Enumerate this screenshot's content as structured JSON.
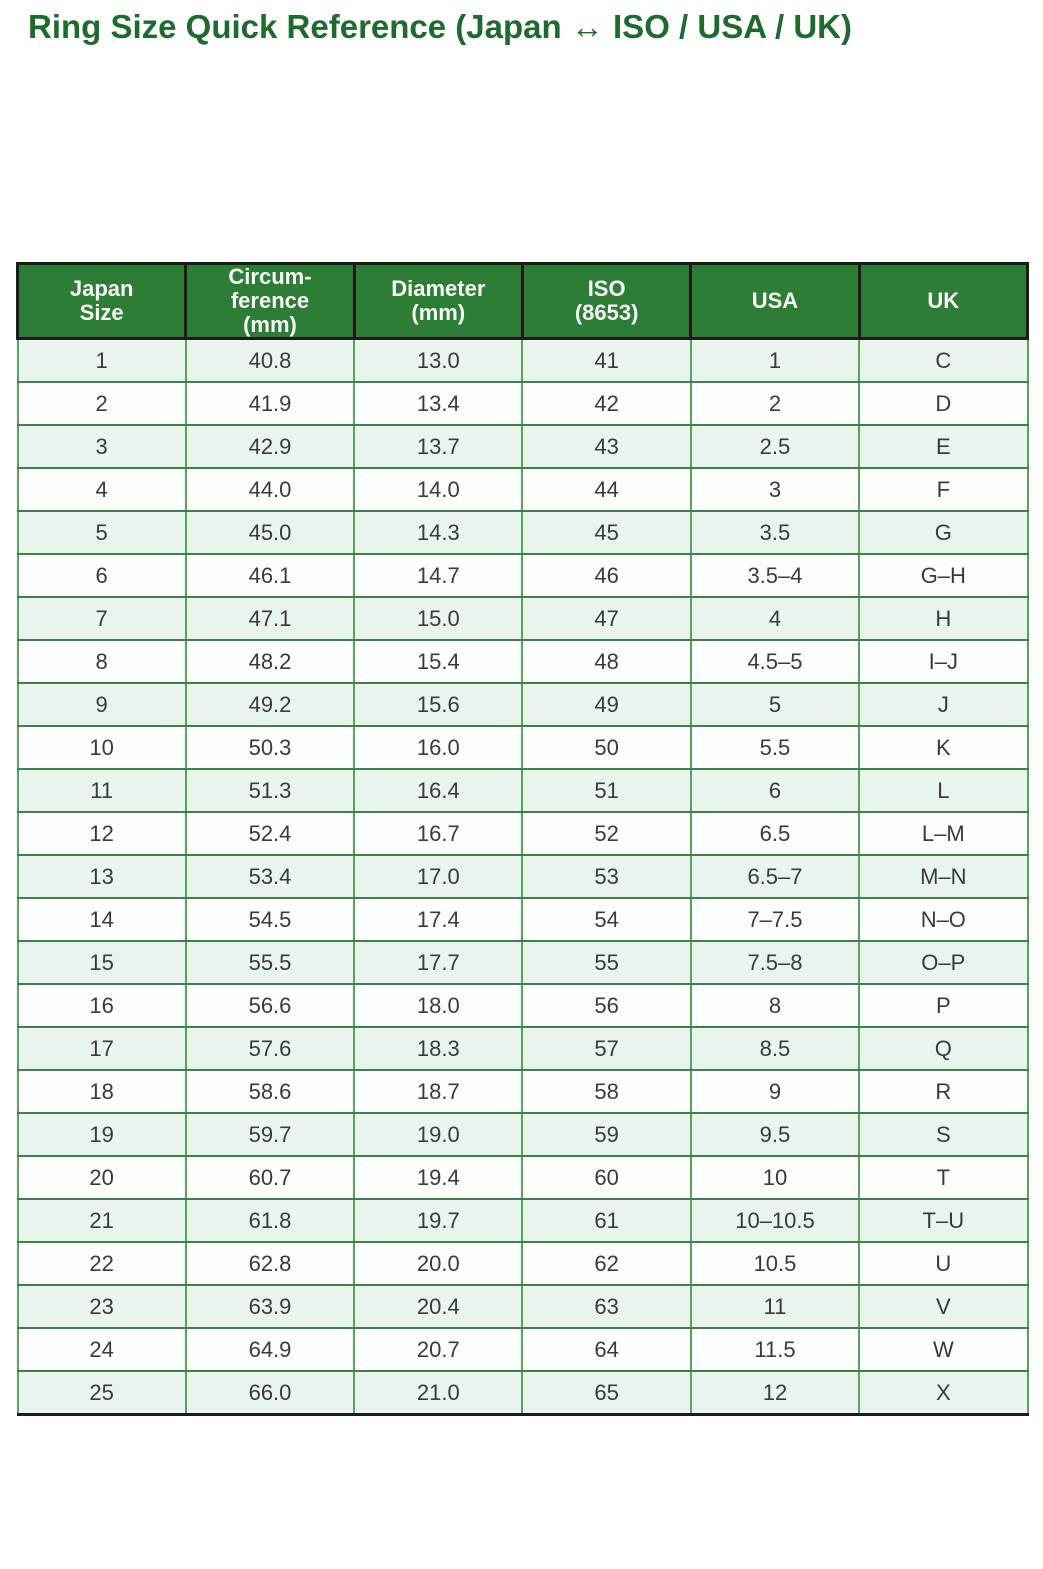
{
  "title": "Ring Size Quick Reference (Japan ↔ ISO / USA / UK)",
  "colors": {
    "title_text": "#1f6b2f",
    "header_bg": "#2e7d36",
    "header_text": "#ffffff",
    "row_alt_bg": "#e9f5ec",
    "row_bg": "#ffffff",
    "body_border_green": "#4b9758",
    "outer_border": "#1c1c1c",
    "body_text": "#3a3a3a"
  },
  "table": {
    "headers": [
      {
        "label": "Japan\nSize"
      },
      {
        "label": "Circum-\nference\n(mm)"
      },
      {
        "label": "Diameter\n(mm)"
      },
      {
        "label": "ISO\n(8653)"
      },
      {
        "label": "USA"
      },
      {
        "label": "UK"
      }
    ],
    "columns": [
      "japan-size",
      "circumference-mm",
      "diameter-mm",
      "iso-8653",
      "usa",
      "uk"
    ],
    "rows": [
      [
        "1",
        "40.8",
        "13.0",
        "41",
        "1",
        "C"
      ],
      [
        "2",
        "41.9",
        "13.4",
        "42",
        "2",
        "D"
      ],
      [
        "3",
        "42.9",
        "13.7",
        "43",
        "2.5",
        "E"
      ],
      [
        "4",
        "44.0",
        "14.0",
        "44",
        "3",
        "F"
      ],
      [
        "5",
        "45.0",
        "14.3",
        "45",
        "3.5",
        "G"
      ],
      [
        "6",
        "46.1",
        "14.7",
        "46",
        "3.5–4",
        "G–H"
      ],
      [
        "7",
        "47.1",
        "15.0",
        "47",
        "4",
        "H"
      ],
      [
        "8",
        "48.2",
        "15.4",
        "48",
        "4.5–5",
        "I–J"
      ],
      [
        "9",
        "49.2",
        "15.6",
        "49",
        "5",
        "J"
      ],
      [
        "10",
        "50.3",
        "16.0",
        "50",
        "5.5",
        "K"
      ],
      [
        "11",
        "51.3",
        "16.4",
        "51",
        "6",
        "L"
      ],
      [
        "12",
        "52.4",
        "16.7",
        "52",
        "6.5",
        "L–M"
      ],
      [
        "13",
        "53.4",
        "17.0",
        "53",
        "6.5–7",
        "M–N"
      ],
      [
        "14",
        "54.5",
        "17.4",
        "54",
        "7–7.5",
        "N–O"
      ],
      [
        "15",
        "55.5",
        "17.7",
        "55",
        "7.5–8",
        "O–P"
      ],
      [
        "16",
        "56.6",
        "18.0",
        "56",
        "8",
        "P"
      ],
      [
        "17",
        "57.6",
        "18.3",
        "57",
        "8.5",
        "Q"
      ],
      [
        "18",
        "58.6",
        "18.7",
        "58",
        "9",
        "R"
      ],
      [
        "19",
        "59.7",
        "19.0",
        "59",
        "9.5",
        "S"
      ],
      [
        "20",
        "60.7",
        "19.4",
        "60",
        "10",
        "T"
      ],
      [
        "21",
        "61.8",
        "19.7",
        "61",
        "10–10.5",
        "T–U"
      ],
      [
        "22",
        "62.8",
        "20.0",
        "62",
        "10.5",
        "U"
      ],
      [
        "23",
        "63.9",
        "20.4",
        "63",
        "11",
        "V"
      ],
      [
        "24",
        "64.9",
        "20.7",
        "64",
        "11.5",
        "W"
      ],
      [
        "25",
        "66.0",
        "21.0",
        "65",
        "12",
        "X"
      ]
    ]
  }
}
